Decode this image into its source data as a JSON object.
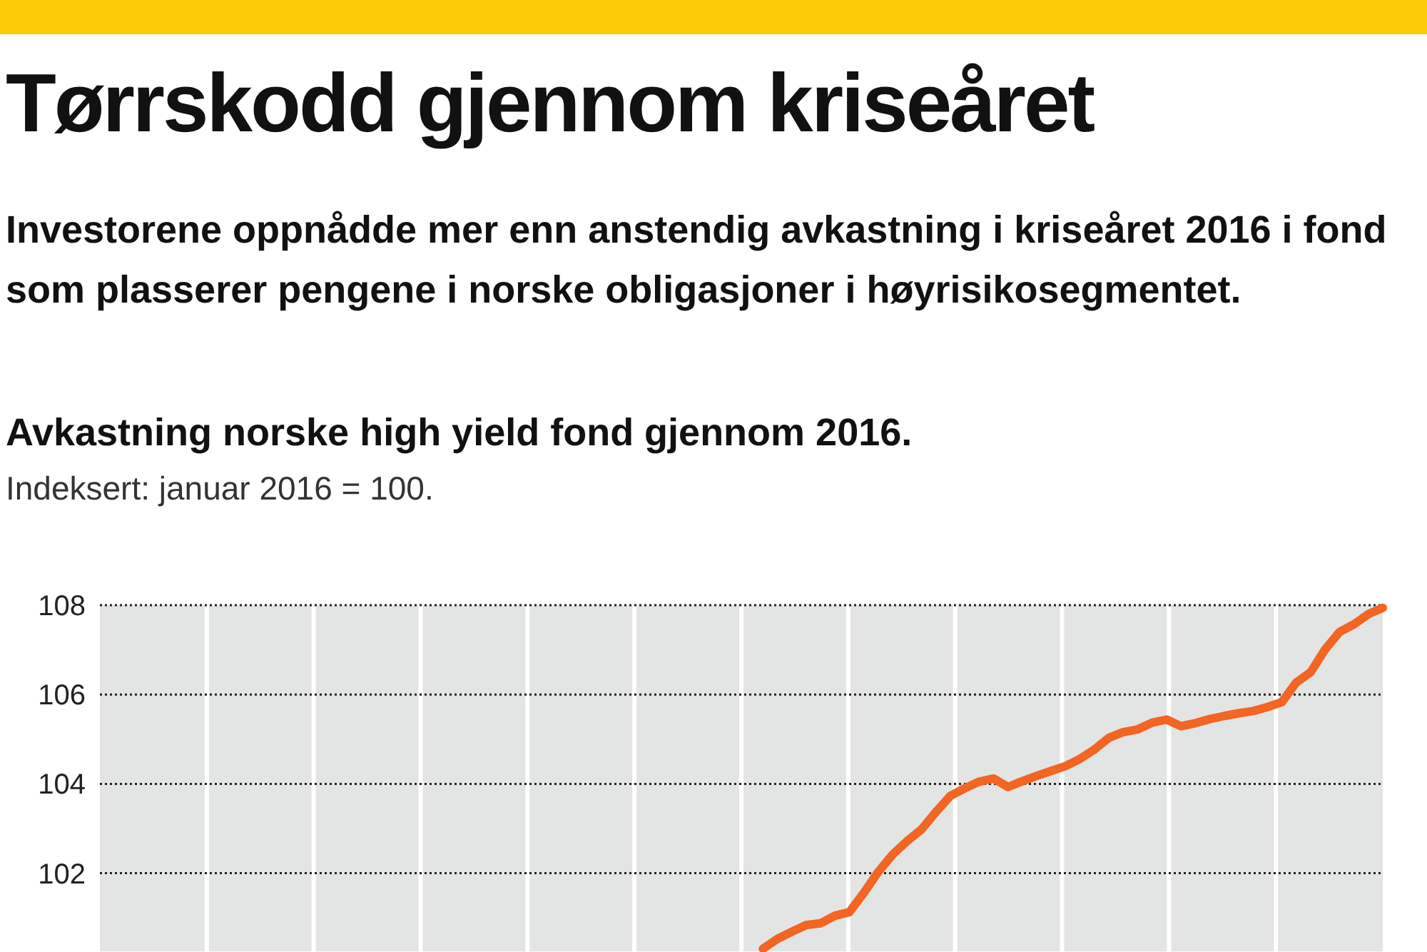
{
  "chart_data": {
    "type": "line",
    "title": "Tørrskodd gjennom kriseåret",
    "subtitle": "Investorene oppnådde mer enn anstendig avkastning i kriseåret 2016 i fond som plasserer pengene i norske obligasjoner i høyrisikosegmentet.",
    "annotations": [
      "Avkastning norske high yield fond gjennom 2016.",
      "Indeksert: januar 2016 = 100."
    ],
    "categories": [
      null,
      null,
      null,
      null,
      null,
      null,
      null,
      null,
      null,
      null,
      null,
      null,
      null,
      null,
      null,
      null,
      null,
      null,
      null,
      null,
      null,
      null,
      null,
      null,
      null,
      null,
      null,
      null,
      null,
      null,
      null,
      null,
      null,
      null,
      null,
      null,
      null,
      null,
      null,
      null,
      null,
      null,
      null,
      null,
      null,
      null,
      null,
      null,
      null,
      null,
      null,
      null,
      null,
      null,
      null,
      null,
      null,
      null,
      null,
      null,
      null,
      null,
      null,
      null,
      null,
      null,
      null,
      null,
      null,
      null,
      null,
      null,
      null,
      null,
      null,
      null,
      null,
      null,
      null,
      null,
      null,
      null,
      null,
      null,
      null,
      null,
      null,
      null,
      null,
      null
    ],
    "series": [
      {
        "color": "#f26522",
        "values": [
          null,
          null,
          null,
          null,
          null,
          null,
          null,
          null,
          null,
          null,
          null,
          null,
          null,
          null,
          null,
          null,
          null,
          null,
          null,
          null,
          null,
          null,
          null,
          null,
          null,
          null,
          null,
          null,
          null,
          null,
          null,
          null,
          null,
          null,
          null,
          null,
          null,
          null,
          null,
          null,
          null,
          null,
          null,
          null,
          null,
          null,
          100.31,
          100.53,
          100.69,
          100.84,
          100.88,
          101.05,
          101.13,
          101.56,
          102.03,
          102.42,
          102.72,
          102.98,
          103.37,
          103.73,
          103.9,
          104.05,
          104.12,
          103.93,
          104.06,
          104.18,
          104.29,
          104.4,
          104.56,
          104.77,
          105.03,
          105.16,
          105.22,
          105.37,
          105.44,
          105.29,
          105.36,
          105.45,
          105.52,
          105.58,
          105.63,
          105.72,
          105.83,
          106.27,
          106.5,
          107.01,
          107.4,
          107.57,
          107.8,
          107.94
        ]
      }
    ],
    "ylim": [
      100.25,
      108
    ],
    "yticks": [
      102,
      104,
      106,
      108
    ],
    "grid": "y",
    "tick_labels": "y",
    "marker": "none",
    "line_style": "solid"
  }
}
